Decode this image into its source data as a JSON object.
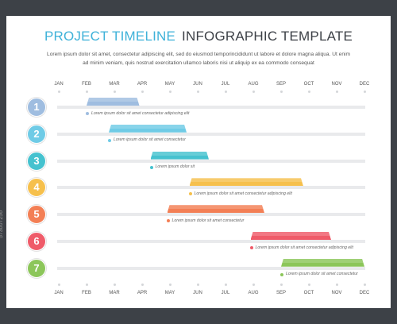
{
  "header": {
    "title_part1": "PROJECT TIMELINE",
    "title_part2": "INFOGRAPHIC TEMPLATE",
    "description": "Lorem ipsum dolor sit amet, consectetur adipiscing elit, sed do eiusmod temporincididunt ut labore et dolore magna aliqua. Ut enim ad minim veniam, quis nostrud exercitation ullamco laboris nisi ut aliquip ex ea commodo consequat"
  },
  "months": [
    "JAN",
    "FEB",
    "MAR",
    "APR",
    "MAY",
    "JUN",
    "JUL",
    "AUG",
    "SEP",
    "OCT",
    "NOV",
    "DEC"
  ],
  "tasks": [
    {
      "number": "1",
      "start": 1.0,
      "end": 2.9,
      "color": "#9fbde0",
      "label": "Lorem ipsum dolor sit amet consectetur adipiscing elit"
    },
    {
      "number": "2",
      "start": 1.8,
      "end": 4.6,
      "color": "#6fcbe6",
      "label": "Lorem ipsum dolor sit amet consectetur"
    },
    {
      "number": "3",
      "start": 3.3,
      "end": 5.4,
      "color": "#45c2cf",
      "label": "Lorem ipsum dolor sit"
    },
    {
      "number": "4",
      "start": 4.7,
      "end": 8.8,
      "color": "#f6c04c",
      "label": "Lorem ipsum dolor sit amet consectetur adipiscing elit"
    },
    {
      "number": "5",
      "start": 3.9,
      "end": 7.4,
      "color": "#f37f55",
      "label": "Lorem ipsum dolor sit amet consectetur"
    },
    {
      "number": "6",
      "start": 6.9,
      "end": 9.8,
      "color": "#ef5b69",
      "label": "Lorem ipsum dolor sit amet consectetur adipiscing elit"
    },
    {
      "number": "7",
      "start": 8.0,
      "end": 11.0,
      "color": "#8cc65a",
      "label": "Lorem ipsum dolor sit amet consectetur"
    }
  ],
  "watermark": {
    "side_text": "573007256"
  }
}
